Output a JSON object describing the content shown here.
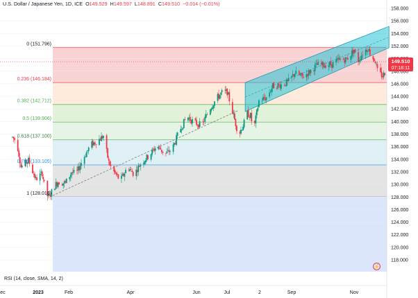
{
  "header": {
    "symbol": "U.S. Dollar / Japanese Yen, 1D, ICE",
    "o_label": "O",
    "o_value": "149.529",
    "h_label": "H",
    "h_value": "149.597",
    "l_label": "L",
    "l_value": "148.891",
    "c_label": "C",
    "c_value": "149.510",
    "change": "−0.014 (−0.01%)"
  },
  "price_badge": {
    "price": "149.510",
    "countdown": "07:18:11"
  },
  "rsi_label": "RSI (14, close, SMA, 14, 2)",
  "colors": {
    "up": "#089981",
    "down": "#f23645",
    "channel": "#22c3d6",
    "fib_0": "#f9d3d3",
    "fib_0236": "#ffeadb",
    "fib_0382": "#e2f2d9",
    "fib_05": "#e6f4e6",
    "fib_0618": "#dff0f5",
    "fib_0786": "#e4e4e4",
    "fib_1": "#dbe5fb"
  },
  "icons": {
    "alert": "lightning-icon"
  },
  "chart_data": {
    "type": "candlestick",
    "title": "U.S. Dollar / Japanese Yen, 1D, ICE",
    "y_ticks": [
      118.0,
      120.0,
      122.0,
      124.0,
      126.0,
      128.0,
      130.0,
      132.0,
      134.0,
      136.0,
      138.0,
      140.0,
      142.0,
      144.0,
      146.0,
      148.0,
      150.0,
      152.0,
      154.0,
      156.0,
      158.0
    ],
    "x_ticks": [
      "ec",
      "2023",
      "Feb",
      "Apr",
      "Jun",
      "Jul",
      "2",
      "Sep",
      "Nov"
    ],
    "ylim": [
      116.0,
      159.0
    ],
    "last_price": 149.51,
    "fib_levels": [
      {
        "ratio": "0",
        "label": "0 (151.796)",
        "value": 151.796
      },
      {
        "ratio": "0.236",
        "label": "0.236 (146.184)",
        "value": 146.184
      },
      {
        "ratio": "0.382",
        "label": "0.382 (142.712)",
        "value": 142.712
      },
      {
        "ratio": "0.5",
        "label": "0.5 (139.906)",
        "value": 139.906
      },
      {
        "ratio": "0.618",
        "label": "0.618 (137.100)",
        "value": 137.1
      },
      {
        "ratio": "0.786",
        "label": "0.786 (133.105)",
        "value": 133.105
      },
      {
        "ratio": "1",
        "label": "1 (128.016)",
        "value": 128.016
      }
    ],
    "trend_line": [
      {
        "x": "Jan 16",
        "y": 128.0
      },
      {
        "x": "Jul 14",
        "y": 141.8
      }
    ],
    "channel": {
      "upper": [
        {
          "x": "Jul 20",
          "y": 146.2
        },
        {
          "x": "Nov 10",
          "y": 154.8
        }
      ],
      "lower": [
        {
          "x": "Jul 20",
          "y": 141.6
        },
        {
          "x": "Nov 10",
          "y": 151.4
        }
      ]
    },
    "path": [
      [
        "Dec 12",
        137.5
      ],
      [
        "Dec 16",
        136.8
      ],
      [
        "Dec 20",
        132.8
      ],
      [
        "Dec 27",
        133.8
      ],
      [
        "Jan 3",
        130.8
      ],
      [
        "Jan 9",
        131.8
      ],
      [
        "Jan 13",
        128.3
      ],
      [
        "Jan 16",
        128.0
      ],
      [
        "Jan 20",
        129.6
      ],
      [
        "Jan 24",
        130.4
      ],
      [
        "Jan 31",
        130.2
      ],
      [
        "Feb 6",
        132.0
      ],
      [
        "Feb 10",
        131.6
      ],
      [
        "Feb 17",
        134.2
      ],
      [
        "Feb 24",
        136.3
      ],
      [
        "Mar 2",
        136.9
      ],
      [
        "Mar 8",
        137.7
      ],
      [
        "Mar 13",
        133.5
      ],
      [
        "Mar 17",
        132.2
      ],
      [
        "Mar 24",
        130.6
      ],
      [
        "Mar 31",
        132.8
      ],
      [
        "Apr 6",
        131.6
      ],
      [
        "Apr 12",
        133.3
      ],
      [
        "Apr 20",
        134.6
      ],
      [
        "Apr 28",
        136.2
      ],
      [
        "May 5",
        134.8
      ],
      [
        "May 12",
        135.6
      ],
      [
        "May 19",
        138.6
      ],
      [
        "May 26",
        140.8
      ],
      [
        "Jun 2",
        139.8
      ],
      [
        "Jun 9",
        139.4
      ],
      [
        "Jun 16",
        141.9
      ],
      [
        "Jun 23",
        143.7
      ],
      [
        "Jun 28",
        144.6
      ],
      [
        "Jul 3",
        144.7
      ],
      [
        "Jul 7",
        142.2
      ],
      [
        "Jul 12",
        139.0
      ],
      [
        "Jul 14",
        137.9
      ],
      [
        "Jul 19",
        139.8
      ],
      [
        "Jul 21",
        141.4
      ],
      [
        "Jul 25",
        140.9
      ],
      [
        "Jul 28",
        138.6
      ],
      [
        "Aug 2",
        143.3
      ],
      [
        "Aug 9",
        143.8
      ],
      [
        "Aug 15",
        145.6
      ],
      [
        "Aug 22",
        145.8
      ],
      [
        "Aug 29",
        146.2
      ],
      [
        "Sep 5",
        147.7
      ],
      [
        "Sep 12",
        147.1
      ],
      [
        "Sep 19",
        147.9
      ],
      [
        "Sep 26",
        149.0
      ],
      [
        "Oct 3",
        149.0
      ],
      [
        "Oct 10",
        149.1
      ],
      [
        "Oct 17",
        149.8
      ],
      [
        "Oct 24",
        149.9
      ],
      [
        "Oct 31",
        151.4
      ],
      [
        "Nov 3",
        149.4
      ],
      [
        "Nov 8",
        150.9
      ],
      [
        "Nov 13",
        151.7
      ],
      [
        "Nov 16",
        150.5
      ],
      [
        "Nov 20",
        149.6
      ],
      [
        "Nov 22",
        148.0
      ],
      [
        "Nov 27",
        147.2
      ],
      [
        "Nov 29",
        147.8
      ],
      [
        "Dec 1",
        149.5
      ]
    ]
  }
}
